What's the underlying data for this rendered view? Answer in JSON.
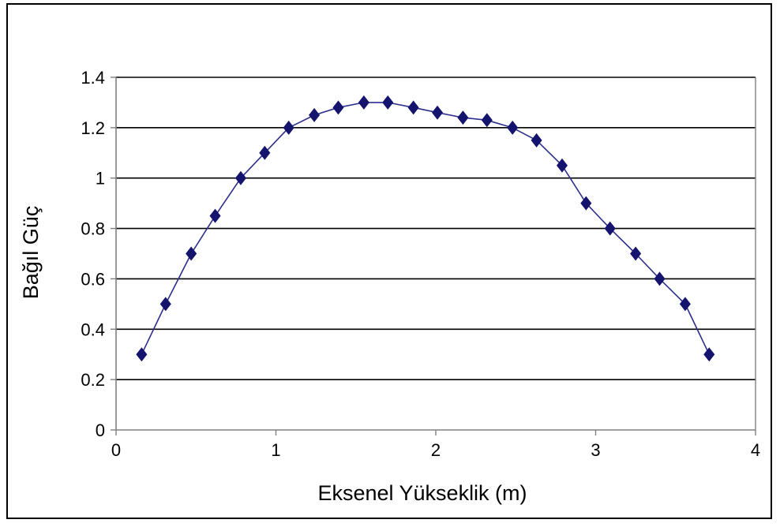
{
  "chart_data": {
    "type": "line",
    "title": "",
    "xlabel": "Eksenel Yükseklik (m)",
    "ylabel": "Bağıl Güç",
    "xlim": [
      0,
      4
    ],
    "ylim": [
      0,
      1.4
    ],
    "xticks": [
      0,
      1,
      2,
      3,
      4
    ],
    "yticks": [
      0,
      0.2,
      0.4,
      0.6,
      0.8,
      1,
      1.2,
      1.4
    ],
    "xtick_labels": [
      "0",
      "1",
      "2",
      "3",
      "4"
    ],
    "ytick_labels": [
      "0",
      "0.2",
      "0.4",
      "0.6",
      "0.8",
      "1",
      "1.2",
      "1.4"
    ],
    "grid": "horizontal",
    "legend": "none",
    "colors": {
      "series": "#2e2e8c",
      "marker": "#14146e",
      "grid": "#000000",
      "axis": "#808080"
    },
    "series": [
      {
        "marker": "diamond",
        "x": [
          0.16,
          0.31,
          0.47,
          0.62,
          0.78,
          0.93,
          1.08,
          1.24,
          1.39,
          1.55,
          1.7,
          1.86,
          2.01,
          2.17,
          2.32,
          2.48,
          2.63,
          2.79,
          2.94,
          3.09,
          3.25,
          3.4,
          3.56,
          3.71
        ],
        "y": [
          0.3,
          0.5,
          0.7,
          0.85,
          1.0,
          1.1,
          1.2,
          1.25,
          1.28,
          1.3,
          1.3,
          1.28,
          1.26,
          1.24,
          1.23,
          1.2,
          1.15,
          1.05,
          0.9,
          0.8,
          0.7,
          0.6,
          0.5,
          0.3
        ]
      }
    ]
  }
}
